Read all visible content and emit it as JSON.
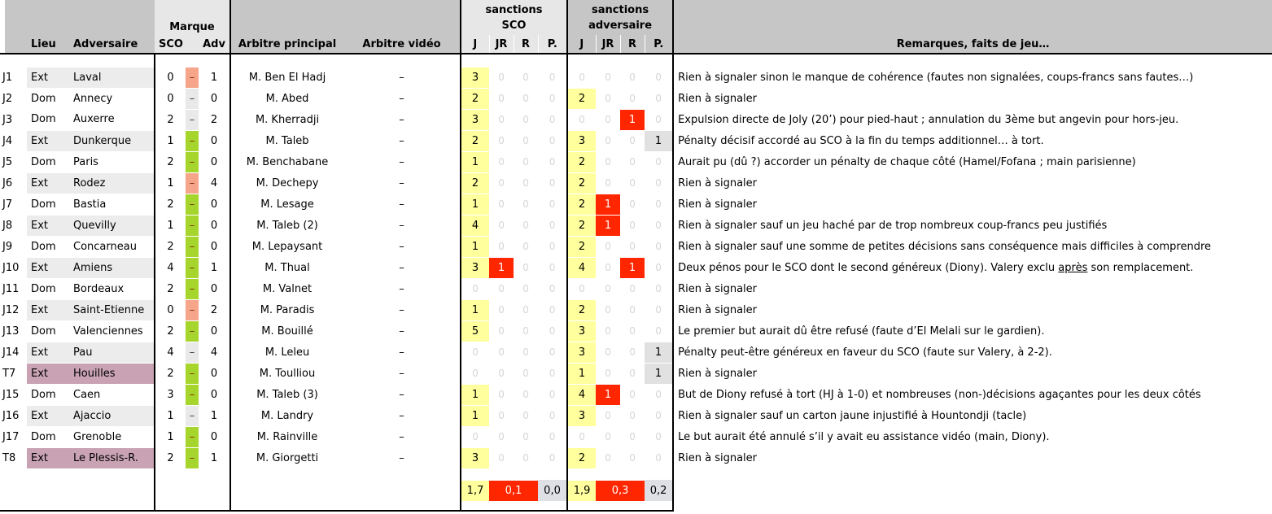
{
  "header": {
    "lieu": "Lieu",
    "adversaire": "Adversaire",
    "marque": "Marque",
    "sco": "SCO",
    "adv": "Adv",
    "arbitre_principal": "Arbitre principal",
    "arbitre_video": "Arbitre vidéo",
    "sanctions_sco_line1": "sanctions",
    "sanctions_sco_line2": "SCO",
    "sanctions_adv_line1": "sanctions",
    "sanctions_adv_line2": "adversaire",
    "sub_cols": [
      "J",
      "JR",
      "R",
      "P."
    ],
    "remarques": "Remarques, faits de jeu…"
  },
  "glyphs": {
    "dash": "–"
  },
  "colors": {
    "header_dark": "#c6c6c6",
    "header_light": "#e7e7e7",
    "win_green": "#a6d62d",
    "loss_salmon": "#f6a58b",
    "draw_gray": "#e9e9e9",
    "yellow_card_bg": "#ffff9e",
    "red_card_bg": "#ff2600",
    "penalty_gray_bg": "#e1e1e1",
    "summary_gray_bg": "#dfe0e6",
    "ext_row_bg": "#ececec",
    "cup_row_bg": "#c9a3b3",
    "zero_text": "#d6d6d6"
  },
  "rows": [
    {
      "id": "J1",
      "lieu": "Ext",
      "adversaire": "Laval",
      "score_sco": "0",
      "score_adv": "1",
      "result": "loss",
      "shade": "ext",
      "arbitre": "M. Ben El Hadj",
      "video": "–",
      "sanctions_sco": [
        3,
        0,
        0,
        0
      ],
      "sanctions_adv": [
        0,
        0,
        0,
        0
      ],
      "remark": "Rien à signaler sinon le manque de cohérence (fautes non signalées, coups-francs sans fautes…)"
    },
    {
      "id": "J2",
      "lieu": "Dom",
      "adversaire": "Annecy",
      "score_sco": "0",
      "score_adv": "0",
      "result": "draw",
      "shade": "dom",
      "arbitre": "M. Abed",
      "video": "–",
      "sanctions_sco": [
        2,
        0,
        0,
        0
      ],
      "sanctions_adv": [
        2,
        0,
        0,
        0
      ],
      "remark": "Rien à signaler"
    },
    {
      "id": "J3",
      "lieu": "Dom",
      "adversaire": "Auxerre",
      "score_sco": "2",
      "score_adv": "2",
      "result": "draw",
      "shade": "dom",
      "arbitre": "M. Kherradji",
      "video": "–",
      "sanctions_sco": [
        3,
        0,
        0,
        0
      ],
      "sanctions_adv": [
        0,
        0,
        1,
        0
      ],
      "remark": "Expulsion directe de Joly (20’) pour pied-haut ; annulation du 3ème but angevin pour hors-jeu."
    },
    {
      "id": "J4",
      "lieu": "Ext",
      "adversaire": "Dunkerque",
      "score_sco": "1",
      "score_adv": "0",
      "result": "win",
      "shade": "ext",
      "arbitre": "M. Taleb",
      "video": "–",
      "sanctions_sco": [
        2,
        0,
        0,
        0
      ],
      "sanctions_adv": [
        3,
        0,
        0,
        1
      ],
      "remark": "Pénalty décisif accordé au SCO à la fin du temps additionnel… à tort."
    },
    {
      "id": "J5",
      "lieu": "Dom",
      "adversaire": "Paris",
      "score_sco": "2",
      "score_adv": "0",
      "result": "win",
      "shade": "dom",
      "arbitre": "M. Benchabane",
      "video": "–",
      "sanctions_sco": [
        1,
        0,
        0,
        0
      ],
      "sanctions_adv": [
        2,
        0,
        0,
        0
      ],
      "remark": "Aurait pu (dû ?) accorder un pénalty de chaque côté (Hamel/Fofana ; main parisienne)"
    },
    {
      "id": "J6",
      "lieu": "Ext",
      "adversaire": "Rodez",
      "score_sco": "1",
      "score_adv": "4",
      "result": "loss",
      "shade": "ext",
      "arbitre": "M. Dechepy",
      "video": "–",
      "sanctions_sco": [
        2,
        0,
        0,
        0
      ],
      "sanctions_adv": [
        2,
        0,
        0,
        0
      ],
      "remark": "Rien à signaler"
    },
    {
      "id": "J7",
      "lieu": "Dom",
      "adversaire": "Bastia",
      "score_sco": "2",
      "score_adv": "0",
      "result": "win",
      "shade": "dom",
      "arbitre": "M. Lesage",
      "video": "–",
      "sanctions_sco": [
        1,
        0,
        0,
        0
      ],
      "sanctions_adv": [
        2,
        1,
        0,
        0
      ],
      "remark": "Rien à signaler"
    },
    {
      "id": "J8",
      "lieu": "Ext",
      "adversaire": "Quevilly",
      "score_sco": "1",
      "score_adv": "0",
      "result": "win",
      "shade": "ext",
      "arbitre": "M. Taleb (2)",
      "video": "–",
      "sanctions_sco": [
        4,
        0,
        0,
        0
      ],
      "sanctions_adv": [
        2,
        1,
        0,
        0
      ],
      "remark": "Rien à signaler sauf un jeu haché par de trop nombreux coup-francs peu justifiés"
    },
    {
      "id": "J9",
      "lieu": "Dom",
      "adversaire": "Concarneau",
      "score_sco": "2",
      "score_adv": "0",
      "result": "win",
      "shade": "dom",
      "arbitre": "M. Lepaysant",
      "video": "–",
      "sanctions_sco": [
        1,
        0,
        0,
        0
      ],
      "sanctions_adv": [
        2,
        0,
        0,
        0
      ],
      "remark": "Rien à signaler sauf une somme de petites décisions sans conséquence mais difficiles à comprendre"
    },
    {
      "id": "J10",
      "lieu": "Ext",
      "adversaire": "Amiens",
      "score_sco": "4",
      "score_adv": "1",
      "result": "win",
      "shade": "ext",
      "arbitre": "M. Thual",
      "video": "–",
      "sanctions_sco": [
        3,
        1,
        0,
        0
      ],
      "sanctions_adv": [
        4,
        0,
        1,
        0
      ],
      "remark": [
        {
          "t": "Deux pénos pour le SCO dont le second généreux (Diony). Valery exclu "
        },
        {
          "t": "après",
          "u": true
        },
        {
          "t": " son remplacement."
        }
      ]
    },
    {
      "id": "J11",
      "lieu": "Dom",
      "adversaire": "Bordeaux",
      "score_sco": "2",
      "score_adv": "0",
      "result": "win",
      "shade": "dom",
      "arbitre": "M. Valnet",
      "video": "–",
      "sanctions_sco": [
        0,
        0,
        0,
        0
      ],
      "sanctions_adv": [
        0,
        0,
        0,
        0
      ],
      "remark": "Rien à signaler"
    },
    {
      "id": "J12",
      "lieu": "Ext",
      "adversaire": "Saint-Etienne",
      "score_sco": "0",
      "score_adv": "2",
      "result": "loss",
      "shade": "ext",
      "arbitre": "M. Paradis",
      "video": "–",
      "sanctions_sco": [
        1,
        0,
        0,
        0
      ],
      "sanctions_adv": [
        2,
        0,
        0,
        0
      ],
      "remark": "Rien à signaler"
    },
    {
      "id": "J13",
      "lieu": "Dom",
      "adversaire": "Valenciennes",
      "score_sco": "2",
      "score_adv": "0",
      "result": "win",
      "shade": "dom",
      "arbitre": "M. Bouillé",
      "video": "–",
      "sanctions_sco": [
        5,
        0,
        0,
        0
      ],
      "sanctions_adv": [
        3,
        0,
        0,
        0
      ],
      "remark": "Le premier but aurait dû être refusé (faute d’El Melali sur le gardien)."
    },
    {
      "id": "J14",
      "lieu": "Ext",
      "adversaire": "Pau",
      "score_sco": "4",
      "score_adv": "4",
      "result": "draw",
      "shade": "ext",
      "arbitre": "M. Leleu",
      "video": "–",
      "sanctions_sco": [
        0,
        0,
        0,
        0
      ],
      "sanctions_adv": [
        3,
        0,
        0,
        1
      ],
      "remark": "Pénalty peut-être généreux en faveur du SCO (faute sur Valery, à 2-2)."
    },
    {
      "id": "T7",
      "lieu": "Ext",
      "adversaire": "Houilles",
      "score_sco": "2",
      "score_adv": "0",
      "result": "win",
      "shade": "cup",
      "arbitre": "M. Toulliou",
      "video": "–",
      "sanctions_sco": [
        0,
        0,
        0,
        0
      ],
      "sanctions_adv": [
        1,
        0,
        0,
        1
      ],
      "remark": "Rien à signaler"
    },
    {
      "id": "J15",
      "lieu": "Dom",
      "adversaire": "Caen",
      "score_sco": "3",
      "score_adv": "0",
      "result": "win",
      "shade": "dom",
      "arbitre": "M. Taleb (3)",
      "video": "–",
      "sanctions_sco": [
        1,
        0,
        0,
        0
      ],
      "sanctions_adv": [
        4,
        1,
        0,
        0
      ],
      "remark": "But de Diony refusé à tort (HJ à 1-0) et nombreuses (non-)décisions agaçantes pour les deux côtés"
    },
    {
      "id": "J16",
      "lieu": "Ext",
      "adversaire": "Ajaccio",
      "score_sco": "1",
      "score_adv": "1",
      "result": "draw",
      "shade": "ext",
      "arbitre": "M. Landry",
      "video": "–",
      "sanctions_sco": [
        1,
        0,
        0,
        0
      ],
      "sanctions_adv": [
        3,
        0,
        0,
        0
      ],
      "remark": "Rien à signaler sauf un carton jaune injustifié à Hountondji (tacle)"
    },
    {
      "id": "J17",
      "lieu": "Dom",
      "adversaire": "Grenoble",
      "score_sco": "1",
      "score_adv": "0",
      "result": "win",
      "shade": "dom",
      "arbitre": "M. Rainville",
      "video": "–",
      "sanctions_sco": [
        0,
        0,
        0,
        0
      ],
      "sanctions_adv": [
        0,
        0,
        0,
        0
      ],
      "remark": "Le but aurait été annulé s’il y avait eu assistance vidéo (main, Diony)."
    },
    {
      "id": "T8",
      "lieu": "Ext",
      "adversaire": "Le Plessis-R.",
      "score_sco": "2",
      "score_adv": "1",
      "result": "win",
      "shade": "cup",
      "arbitre": "M. Giorgetti",
      "video": "–",
      "sanctions_sco": [
        3,
        0,
        0,
        0
      ],
      "sanctions_adv": [
        2,
        0,
        0,
        0
      ],
      "remark": "Rien à signaler"
    }
  ],
  "summary": {
    "sco": {
      "j": "1,7",
      "jr_r": "0,1",
      "p": "0,0"
    },
    "adv": {
      "j": "1,9",
      "jr_r": "0,3",
      "p": "0,2"
    }
  }
}
